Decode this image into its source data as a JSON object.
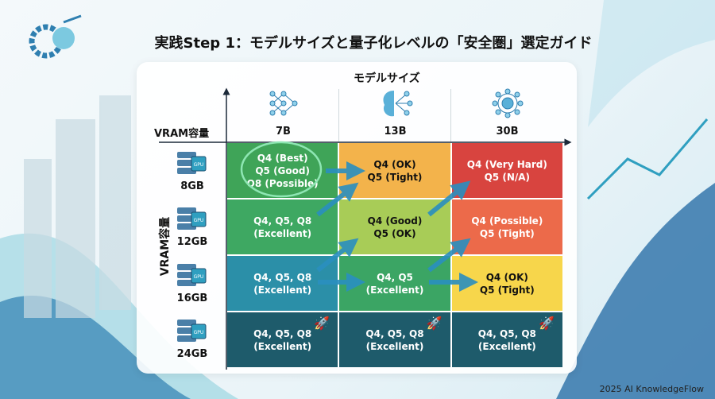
{
  "title": "実践Step 1：モデルサイズと量子化レベルの「安全圏」選定ガイド",
  "x_axis_label": "モデルサイズ",
  "y_axis_head": "VRAM容量",
  "y_axis_label": "VRAM容量",
  "columns": [
    {
      "name": "7B",
      "icon": "neural-network-icon"
    },
    {
      "name": "13B",
      "icon": "brain-network-icon"
    },
    {
      "name": "30B",
      "icon": "globe-brain-icon"
    }
  ],
  "rows": [
    {
      "name": "8GB"
    },
    {
      "name": "12GB"
    },
    {
      "name": "16GB"
    },
    {
      "name": "24GB"
    }
  ],
  "cells": [
    [
      {
        "l1": "Q4 (Best)",
        "l2": "Q5 (Good)",
        "l3": "Q8 (Possible)",
        "color": "#3fa458",
        "text": "light"
      },
      {
        "l1": "Q4 (OK)",
        "l2": "Q5 (Tight)",
        "color": "#f3b34b",
        "text": "dark"
      },
      {
        "l1": "Q4 (Very Hard)",
        "l2": "Q5 (N/A)",
        "color": "#d8443f",
        "text": "light"
      }
    ],
    [
      {
        "l1": "Q4, Q5, Q8",
        "l2": "(Excellent)",
        "color": "#3ea862",
        "text": "light"
      },
      {
        "l1": "Q4 (Good)",
        "l2": "Q5 (OK)",
        "color": "#a8cc57",
        "text": "dark"
      },
      {
        "l1": "Q4 (Possible)",
        "l2": "Q5 (Tight)",
        "color": "#ec6a4a",
        "text": "light"
      }
    ],
    [
      {
        "l1": "Q4, Q5, Q8",
        "l2": "(Excellent)",
        "color": "#2b8fa8",
        "text": "light"
      },
      {
        "l1": "Q4, Q5",
        "l2": "(Excellent)",
        "color": "#3ba564",
        "text": "light"
      },
      {
        "l1": "Q4 (OK)",
        "l2": "Q5 (Tight)",
        "color": "#f7d64b",
        "text": "dark"
      }
    ],
    [
      {
        "l1": "Q4, Q5, Q8",
        "l2": "(Excellent)",
        "color": "#1e5b6b",
        "text": "light",
        "rocket": true
      },
      {
        "l1": "Q4, Q5, Q8",
        "l2": "(Excellent)",
        "color": "#1e5b6b",
        "text": "light",
        "rocket": true
      },
      {
        "l1": "Q4, Q5, Q8",
        "l2": "(Excellent)",
        "color": "#1e5b6b",
        "text": "light",
        "rocket": true
      }
    ]
  ],
  "footer": "2025 AI KnowledgeFlow",
  "colors": {
    "accent": "#2f8fc0",
    "highlight": "#7fe0a8"
  }
}
